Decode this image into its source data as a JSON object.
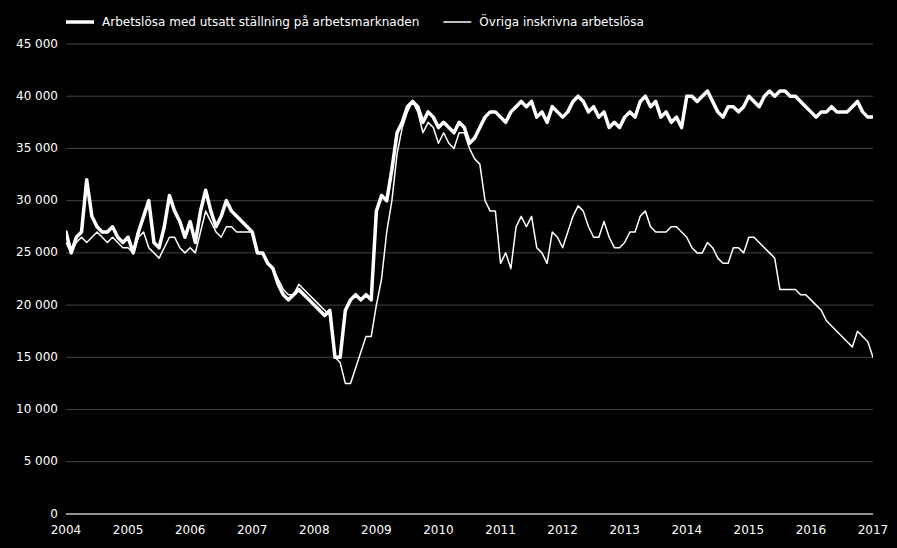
{
  "chart_data": {
    "type": "line",
    "background_color": "#000000",
    "text_color": "#ffffff",
    "grid_color": "#444444",
    "grid": true,
    "legend": "upper left",
    "xlim": [
      2004,
      2017
    ],
    "xticks": [
      2004,
      2005,
      2006,
      2007,
      2008,
      2009,
      2010,
      2011,
      2012,
      2013,
      2014,
      2015,
      2016,
      2017
    ],
    "ylim": [
      0,
      45000
    ],
    "yticks": [
      0,
      {
        "value": 5000,
        "label": "5 000"
      },
      {
        "value": 10000,
        "label": "10 000"
      },
      {
        "value": 15000,
        "label": "15 000"
      },
      {
        "value": 20000,
        "label": "20 000"
      },
      {
        "value": 25000,
        "label": "25 000"
      },
      {
        "value": 30000,
        "label": "30 000"
      },
      {
        "value": 35000,
        "label": "35 000"
      },
      {
        "value": 40000,
        "label": "40 000"
      },
      {
        "value": 45000,
        "label": "45 000"
      }
    ],
    "x": [
      2004,
      2004.083333,
      2004.166667,
      2004.25,
      2004.333333,
      2004.416667,
      2004.5,
      2004.583333,
      2004.666667,
      2004.75,
      2004.833333,
      2004.916667,
      2005,
      2005.083333,
      2005.166667,
      2005.25,
      2005.333333,
      2005.416667,
      2005.5,
      2005.583333,
      2005.666667,
      2005.75,
      2005.833333,
      2005.916667,
      2006,
      2006.083333,
      2006.166667,
      2006.25,
      2006.333333,
      2006.416667,
      2006.5,
      2006.583333,
      2006.666667,
      2006.75,
      2006.833333,
      2006.916667,
      2007,
      2007.083333,
      2007.166667,
      2007.25,
      2007.333333,
      2007.416667,
      2007.5,
      2007.583333,
      2007.666667,
      2007.75,
      2007.833333,
      2007.916667,
      2008,
      2008.083333,
      2008.166667,
      2008.25,
      2008.333333,
      2008.416667,
      2008.5,
      2008.583333,
      2008.666667,
      2008.75,
      2008.833333,
      2008.916667,
      2009,
      2009.083333,
      2009.166667,
      2009.25,
      2009.333333,
      2009.416667,
      2009.5,
      2009.583333,
      2009.666667,
      2009.75,
      2009.833333,
      2009.916667,
      2010,
      2010.083333,
      2010.166667,
      2010.25,
      2010.333333,
      2010.416667,
      2010.5,
      2010.583333,
      2010.666667,
      2010.75,
      2010.833333,
      2010.916667,
      2011,
      2011.083333,
      2011.166667,
      2011.25,
      2011.333333,
      2011.416667,
      2011.5,
      2011.583333,
      2011.666667,
      2011.75,
      2011.833333,
      2011.916667,
      2012,
      2012.083333,
      2012.166667,
      2012.25,
      2012.333333,
      2012.416667,
      2012.5,
      2012.583333,
      2012.666667,
      2012.75,
      2012.833333,
      2012.916667,
      2013,
      2013.083333,
      2013.166667,
      2013.25,
      2013.333333,
      2013.416667,
      2013.5,
      2013.583333,
      2013.666667,
      2013.75,
      2013.833333,
      2013.916667,
      2014,
      2014.083333,
      2014.166667,
      2014.25,
      2014.333333,
      2014.416667,
      2014.5,
      2014.583333,
      2014.666667,
      2014.75,
      2014.833333,
      2014.916667,
      2015,
      2015.083333,
      2015.166667,
      2015.25,
      2015.333333,
      2015.416667,
      2015.5,
      2015.583333,
      2015.666667,
      2015.75,
      2015.833333,
      2015.916667,
      2016,
      2016.083333,
      2016.166667,
      2016.25,
      2016.333333,
      2016.416667,
      2016.5,
      2016.583333,
      2016.666667,
      2016.75,
      2016.833333,
      2016.916667,
      2017
    ],
    "series": [
      {
        "name": "Arbetslösa med utsatt ställning på arbetsmarknaden",
        "color": "#ffffff",
        "values": [
          27000,
          25000,
          26500,
          27000,
          32000,
          28500,
          27500,
          27000,
          27000,
          27500,
          26500,
          26000,
          26500,
          25000,
          27000,
          28500,
          30000,
          26000,
          25500,
          27500,
          30500,
          29000,
          28000,
          26500,
          28000,
          26000,
          29000,
          31000,
          29000,
          27500,
          28500,
          30000,
          29000,
          28500,
          28000,
          27500,
          27000,
          25000,
          25000,
          24000,
          23500,
          22000,
          21000,
          20500,
          21000,
          21500,
          21000,
          20500,
          20000,
          19500,
          19000,
          19500,
          15000,
          15000,
          19500,
          20500,
          21000,
          20500,
          21000,
          20500,
          29000,
          30500,
          30000,
          33000,
          36500,
          37500,
          39000,
          39500,
          39000,
          37500,
          38500,
          38000,
          37000,
          37500,
          37000,
          36500,
          37500,
          37000,
          35500,
          36000,
          37000,
          38000,
          38500,
          38500,
          38000,
          37500,
          38500,
          39000,
          39500,
          39000,
          39500,
          38000,
          38500,
          37500,
          39000,
          38500,
          38000,
          38500,
          39500,
          40000,
          39500,
          38500,
          39000,
          38000,
          38500,
          37000,
          37500,
          37000,
          38000,
          38500,
          38000,
          39500,
          40000,
          39000,
          39500,
          38000,
          38500,
          37500,
          38000,
          37000,
          40000,
          40000,
          39500,
          40000,
          40500,
          39500,
          38500,
          38000,
          39000,
          39000,
          38500,
          39000,
          40000,
          39500,
          39000,
          40000,
          40500,
          40000,
          40500,
          40500,
          40000,
          40000,
          39500,
          39000,
          38500,
          38000,
          38500,
          38500,
          39000,
          38500,
          38500,
          38500,
          39000,
          39500,
          38500,
          38000,
          38000
        ]
      },
      {
        "name": "Övriga inskrivna arbetslösa",
        "color": "#ffffff",
        "values": [
          26000,
          25000,
          26000,
          26500,
          26000,
          26500,
          27000,
          26500,
          26000,
          26500,
          26000,
          25500,
          25500,
          25000,
          26500,
          27000,
          25500,
          25000,
          24500,
          25500,
          26500,
          26500,
          25500,
          25000,
          25500,
          25000,
          27000,
          29000,
          28000,
          27000,
          26500,
          27500,
          27500,
          27000,
          27000,
          27000,
          27000,
          25000,
          25000,
          24000,
          23500,
          22500,
          21500,
          21000,
          21000,
          22000,
          21500,
          21000,
          20500,
          20000,
          19500,
          19000,
          15000,
          14500,
          12500,
          12500,
          14000,
          15500,
          17000,
          17000,
          20000,
          22500,
          27000,
          30000,
          34500,
          37000,
          38500,
          39500,
          38500,
          36500,
          37500,
          37000,
          35500,
          36500,
          35500,
          35000,
          36500,
          36500,
          35000,
          34000,
          33500,
          30000,
          29000,
          29000,
          24000,
          25000,
          23500,
          27500,
          28500,
          27500,
          28500,
          25500,
          25000,
          24000,
          27000,
          26500,
          25500,
          27000,
          28500,
          29500,
          29000,
          27500,
          26500,
          26500,
          28000,
          26500,
          25500,
          25500,
          26000,
          27000,
          27000,
          28500,
          29000,
          27500,
          27000,
          27000,
          27000,
          27500,
          27500,
          27000,
          26500,
          25500,
          25000,
          25000,
          26000,
          25500,
          24500,
          24000,
          24000,
          25500,
          25500,
          25000,
          26500,
          26500,
          26000,
          25500,
          25000,
          24500,
          21500,
          21500,
          21500,
          21500,
          21000,
          21000,
          20500,
          20000,
          19500,
          18500,
          18000,
          17500,
          17000,
          16500,
          16000,
          17500,
          17000,
          16500,
          15000
        ]
      }
    ]
  }
}
